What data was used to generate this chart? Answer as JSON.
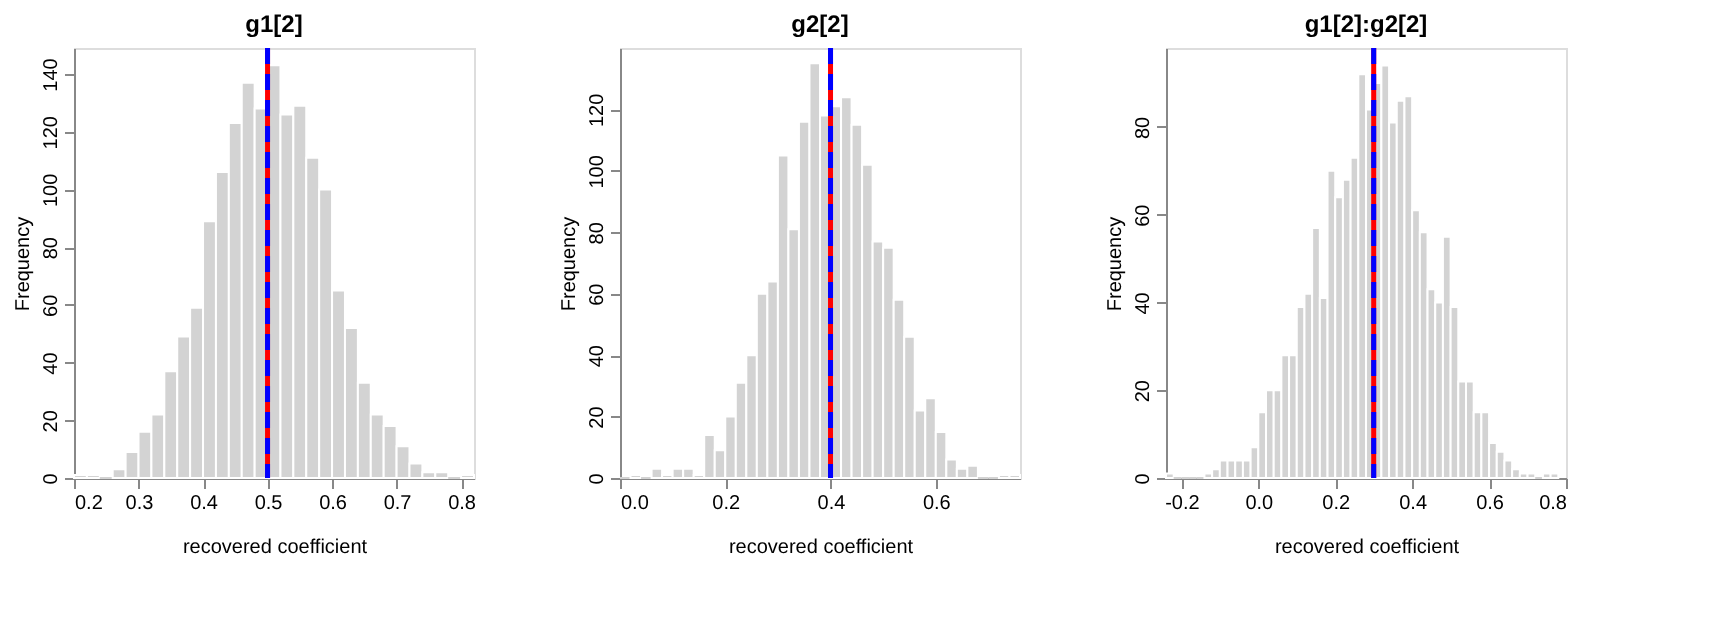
{
  "chart_data": [
    {
      "type": "histogram",
      "title": "g1[2]",
      "xlabel": "recovered coefficient",
      "ylabel": "Frequency",
      "color": "#d3d3d3",
      "bins": [
        0.2,
        0.22,
        0.24,
        0.26,
        0.28,
        0.3,
        0.32,
        0.34,
        0.36,
        0.38,
        0.4,
        0.42,
        0.44,
        0.46,
        0.48,
        0.5,
        0.52,
        0.54,
        0.56,
        0.58,
        0.6,
        0.62,
        0.64,
        0.66,
        0.68,
        0.7,
        0.72,
        0.74,
        0.76,
        0.78,
        0.8,
        0.82
      ],
      "values": [
        1,
        1,
        0,
        3,
        9,
        16,
        22,
        37,
        49,
        59,
        89,
        106,
        123,
        137,
        128,
        143,
        126,
        129,
        111,
        100,
        65,
        52,
        33,
        22,
        18,
        11,
        5,
        2,
        2,
        0,
        1
      ],
      "xlim": [
        0.2,
        0.82
      ],
      "xticks": [
        0.2,
        0.3,
        0.4,
        0.5,
        0.6,
        0.7,
        0.8
      ],
      "ylim": [
        0,
        149
      ],
      "yticks": [
        0,
        20,
        40,
        60,
        80,
        100,
        120,
        140
      ],
      "ref_lines": [
        {
          "axis": "x",
          "value": 0.5,
          "color": "#ff0000",
          "line_style": "solid"
        },
        {
          "axis": "x",
          "value": 0.5,
          "color": "#0000ff",
          "line_style": "dashed"
        }
      ],
      "grid": false
    },
    {
      "type": "histogram",
      "title": "g2[2]",
      "xlabel": "recovered coefficient",
      "ylabel": "Frequency",
      "color": "#d3d3d3",
      "bins": [
        0.0,
        0.02,
        0.04,
        0.06,
        0.08,
        0.1,
        0.12,
        0.14,
        0.16,
        0.18,
        0.2,
        0.22,
        0.24,
        0.26,
        0.28,
        0.3,
        0.32,
        0.34,
        0.36,
        0.38,
        0.4,
        0.42,
        0.44,
        0.46,
        0.48,
        0.5,
        0.52,
        0.54,
        0.56,
        0.58,
        0.6,
        0.62,
        0.64,
        0.66,
        0.68,
        0.7,
        0.72,
        0.74,
        0.76
      ],
      "values": [
        0,
        1,
        0,
        3,
        1,
        3,
        3,
        1,
        14,
        9,
        20,
        31,
        40,
        60,
        64,
        105,
        81,
        116,
        135,
        118,
        121,
        124,
        115,
        102,
        77,
        75,
        58,
        46,
        22,
        26,
        15,
        6,
        3,
        4,
        0,
        0,
        1,
        1
      ],
      "xlim": [
        0,
        0.76
      ],
      "xticks": [
        {
          "value": 0,
          "label": "0.0"
        },
        0.2,
        0.4,
        0.6
      ],
      "ylim": [
        0,
        140
      ],
      "yticks": [
        0,
        20,
        40,
        60,
        80,
        100,
        120
      ],
      "ref_lines": [
        {
          "axis": "x",
          "value": 0.4,
          "color": "#ff0000",
          "line_style": "solid"
        },
        {
          "axis": "x",
          "value": 0.4,
          "color": "#0000ff",
          "line_style": "dashed"
        }
      ],
      "grid": false
    },
    {
      "type": "histogram",
      "title": "g1[2]:g2[2]",
      "xlabel": "recovered coefficient",
      "ylabel": "Frequency",
      "color": "#d3d3d3",
      "bins": [
        -0.24,
        -0.22,
        -0.2,
        -0.18,
        -0.16,
        -0.14,
        -0.12,
        -0.1,
        -0.08,
        -0.06,
        -0.04,
        -0.02,
        0.0,
        0.02,
        0.04,
        0.06,
        0.08,
        0.1,
        0.12,
        0.14,
        0.16,
        0.18,
        0.2,
        0.22,
        0.24,
        0.26,
        0.28,
        0.3,
        0.32,
        0.34,
        0.36,
        0.38,
        0.4,
        0.42,
        0.44,
        0.46,
        0.48,
        0.5,
        0.52,
        0.54,
        0.56,
        0.58,
        0.6,
        0.62,
        0.64,
        0.66,
        0.68,
        0.7,
        0.72,
        0.74,
        0.76,
        0.78
      ],
      "values": [
        1,
        0,
        0,
        0,
        0,
        1,
        2,
        4,
        4,
        4,
        4,
        7,
        15,
        20,
        20,
        28,
        28,
        39,
        42,
        57,
        41,
        70,
        64,
        68,
        73,
        92,
        84,
        90,
        94,
        81,
        86,
        87,
        61,
        56,
        43,
        40,
        55,
        39,
        22,
        22,
        15,
        15,
        8,
        6,
        4,
        2,
        1,
        1,
        0,
        1,
        1
      ],
      "xlim": [
        -0.24,
        0.8
      ],
      "xticks": [
        -0.2,
        {
          "value": 0,
          "label": "0.0"
        },
        0.2,
        0.4,
        0.6,
        0.8
      ],
      "ylim": [
        0,
        98
      ],
      "yticks": [
        0,
        20,
        40,
        60,
        80
      ],
      "ref_lines": [
        {
          "axis": "x",
          "value": 0.3,
          "color": "#ff0000",
          "line_style": "solid"
        },
        {
          "axis": "x",
          "value": 0.3,
          "color": "#0000ff",
          "line_style": "dashed"
        }
      ],
      "grid": false
    }
  ]
}
